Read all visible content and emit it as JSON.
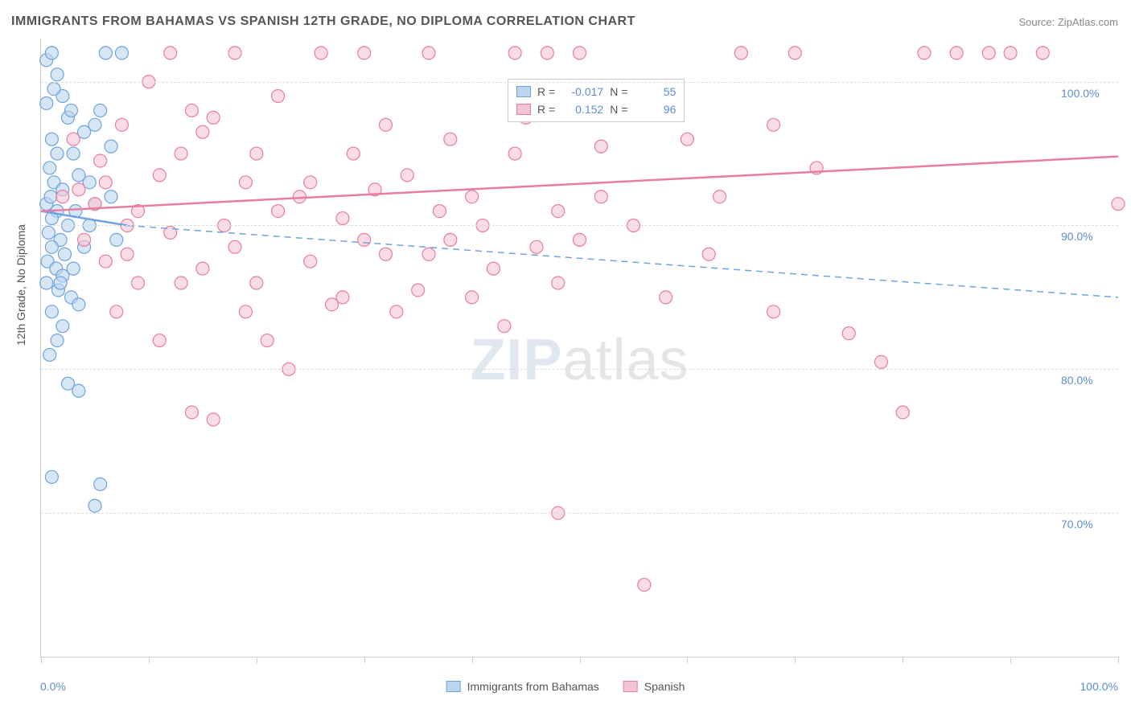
{
  "title": "IMMIGRANTS FROM BAHAMAS VS SPANISH 12TH GRADE, NO DIPLOMA CORRELATION CHART",
  "source": "Source: ZipAtlas.com",
  "ylabel": "12th Grade, No Diploma",
  "watermark_zip": "ZIP",
  "watermark_atlas": "atlas",
  "chart": {
    "type": "scatter",
    "xlim": [
      0,
      100
    ],
    "ylim": [
      60,
      103
    ],
    "x_ticks": [
      0,
      10,
      20,
      30,
      40,
      50,
      60,
      70,
      80,
      90,
      100
    ],
    "y_gridlines": [
      70,
      80,
      90,
      100
    ],
    "x_tick_labels": {
      "min": "0.0%",
      "max": "100.0%"
    },
    "y_tick_labels": [
      "70.0%",
      "80.0%",
      "90.0%",
      "100.0%"
    ],
    "background_color": "#ffffff",
    "grid_color": "#dddddd",
    "axis_color": "#cccccc",
    "tick_label_color": "#5b8dd6",
    "marker_radius": 8,
    "marker_stroke_width": 1.2,
    "marker_fill_opacity": 0.25,
    "series": [
      {
        "name": "Immigrants from Bahamas",
        "color": "#6ea3e0",
        "fill": "#bcd5ef",
        "r_value": "-0.017",
        "n_value": "55",
        "trend": {
          "x1": 0,
          "y1": 91.0,
          "x2": 8,
          "y2": 90.0,
          "solid": true
        },
        "trend_ext": {
          "x1": 8,
          "y1": 90.0,
          "x2": 100,
          "y2": 85.0,
          "solid": false
        },
        "points": [
          [
            0.5,
            101.5
          ],
          [
            1.0,
            102.0
          ],
          [
            1.5,
            100.5
          ],
          [
            2.0,
            99.0
          ],
          [
            2.5,
            97.5
          ],
          [
            1.0,
            96.0
          ],
          [
            3.0,
            95.0
          ],
          [
            0.8,
            94.0
          ],
          [
            1.2,
            93.0
          ],
          [
            2.0,
            92.5
          ],
          [
            0.5,
            91.5
          ],
          [
            1.5,
            91.0
          ],
          [
            6.0,
            102.0
          ],
          [
            7.5,
            102.0
          ],
          [
            5.5,
            98.0
          ],
          [
            4.0,
            96.5
          ],
          [
            6.5,
            95.5
          ],
          [
            3.5,
            93.5
          ],
          [
            1.0,
            90.5
          ],
          [
            2.5,
            90.0
          ],
          [
            0.7,
            89.5
          ],
          [
            1.8,
            89.0
          ],
          [
            1.0,
            88.5
          ],
          [
            2.2,
            88.0
          ],
          [
            0.6,
            87.5
          ],
          [
            1.4,
            87.0
          ],
          [
            2.0,
            86.5
          ],
          [
            0.5,
            86.0
          ],
          [
            1.6,
            85.5
          ],
          [
            2.8,
            85.0
          ],
          [
            5.0,
            91.5
          ],
          [
            6.5,
            92.0
          ],
          [
            4.5,
            90.0
          ],
          [
            7.0,
            89.0
          ],
          [
            5.0,
            97.0
          ],
          [
            3.0,
            87.0
          ],
          [
            1.0,
            84.0
          ],
          [
            2.0,
            83.0
          ],
          [
            1.5,
            82.0
          ],
          [
            0.8,
            81.0
          ],
          [
            3.5,
            84.5
          ],
          [
            4.0,
            88.5
          ],
          [
            2.5,
            79.0
          ],
          [
            3.5,
            78.5
          ],
          [
            1.0,
            72.5
          ],
          [
            5.5,
            72.0
          ],
          [
            5.0,
            70.5
          ],
          [
            0.5,
            98.5
          ],
          [
            1.2,
            99.5
          ],
          [
            2.8,
            98.0
          ],
          [
            1.5,
            95.0
          ],
          [
            0.9,
            92.0
          ],
          [
            3.2,
            91.0
          ],
          [
            1.8,
            86.0
          ],
          [
            4.5,
            93.0
          ]
        ]
      },
      {
        "name": "Spanish",
        "color": "#e87da0",
        "fill": "#f5c4d3",
        "r_value": "0.152",
        "n_value": "96",
        "trend": {
          "x1": 0,
          "y1": 91.0,
          "x2": 100,
          "y2": 94.8,
          "solid": true
        },
        "points": [
          [
            2.0,
            92.0
          ],
          [
            3.5,
            92.5
          ],
          [
            5.0,
            91.5
          ],
          [
            6.0,
            93.0
          ],
          [
            8.0,
            90.0
          ],
          [
            10.0,
            100.0
          ],
          [
            12.0,
            102.0
          ],
          [
            14.0,
            98.0
          ],
          [
            15.0,
            96.5
          ],
          [
            13.0,
            95.0
          ],
          [
            11.0,
            93.5
          ],
          [
            9.0,
            91.0
          ],
          [
            16.0,
            97.5
          ],
          [
            18.0,
            102.0
          ],
          [
            20.0,
            95.0
          ],
          [
            22.0,
            99.0
          ],
          [
            24.0,
            92.0
          ],
          [
            26.0,
            102.0
          ],
          [
            28.0,
            90.5
          ],
          [
            30.0,
            102.0
          ],
          [
            32.0,
            97.0
          ],
          [
            34.0,
            93.5
          ],
          [
            36.0,
            102.0
          ],
          [
            38.0,
            96.0
          ],
          [
            40.0,
            92.0
          ],
          [
            8.0,
            88.0
          ],
          [
            12.0,
            89.5
          ],
          [
            15.0,
            87.0
          ],
          [
            18.0,
            88.5
          ],
          [
            20.0,
            86.0
          ],
          [
            25.0,
            87.5
          ],
          [
            28.0,
            85.0
          ],
          [
            32.0,
            88.0
          ],
          [
            35.0,
            85.5
          ],
          [
            38.0,
            89.0
          ],
          [
            42.0,
            87.0
          ],
          [
            45.0,
            97.5
          ],
          [
            48.0,
            91.0
          ],
          [
            50.0,
            102.0
          ],
          [
            52.0,
            92.0
          ],
          [
            44.0,
            95.0
          ],
          [
            46.0,
            88.5
          ],
          [
            48.0,
            86.0
          ],
          [
            50.0,
            89.0
          ],
          [
            55.0,
            90.0
          ],
          [
            52.0,
            95.5
          ],
          [
            58.0,
            85.0
          ],
          [
            60.0,
            96.0
          ],
          [
            63.0,
            92.0
          ],
          [
            65.0,
            102.0
          ],
          [
            68.0,
            84.0
          ],
          [
            75.0,
            82.5
          ],
          [
            78.0,
            80.5
          ],
          [
            80.0,
            77.0
          ],
          [
            70.0,
            102.0
          ],
          [
            72.0,
            94.0
          ],
          [
            82.0,
            102.0
          ],
          [
            85.0,
            102.0
          ],
          [
            88.0,
            102.0
          ],
          [
            90.0,
            102.0
          ],
          [
            93.0,
            102.0
          ],
          [
            48.0,
            70.0
          ],
          [
            56.0,
            65.0
          ],
          [
            68.0,
            97.0
          ],
          [
            100.0,
            91.5
          ],
          [
            6.0,
            87.5
          ],
          [
            4.0,
            89.0
          ],
          [
            7.0,
            84.0
          ],
          [
            9.0,
            86.0
          ],
          [
            11.0,
            82.0
          ],
          [
            14.0,
            77.0
          ],
          [
            16.0,
            76.5
          ],
          [
            19.0,
            84.0
          ],
          [
            21.0,
            82.0
          ],
          [
            23.0,
            80.0
          ],
          [
            27.0,
            84.5
          ],
          [
            30.0,
            89.0
          ],
          [
            33.0,
            84.0
          ],
          [
            36.0,
            88.0
          ],
          [
            40.0,
            85.0
          ],
          [
            43.0,
            83.0
          ],
          [
            47.0,
            102.0
          ],
          [
            22.0,
            91.0
          ],
          [
            25.0,
            93.0
          ],
          [
            29.0,
            95.0
          ],
          [
            31.0,
            92.5
          ],
          [
            37.0,
            91.0
          ],
          [
            41.0,
            90.0
          ],
          [
            44.0,
            102.0
          ],
          [
            13.0,
            86.0
          ],
          [
            17.0,
            90.0
          ],
          [
            19.0,
            93.0
          ],
          [
            3.0,
            96.0
          ],
          [
            5.5,
            94.5
          ],
          [
            7.5,
            97.0
          ],
          [
            62.0,
            88.0
          ]
        ]
      }
    ]
  },
  "legend_stats": {
    "r_label": "R =",
    "n_label": "N ="
  },
  "bottom_legend": [
    {
      "label": "Immigrants from Bahamas",
      "color": "#6ea3e0",
      "fill": "#bcd5ef"
    },
    {
      "label": "Spanish",
      "color": "#e87da0",
      "fill": "#f5c4d3"
    }
  ]
}
